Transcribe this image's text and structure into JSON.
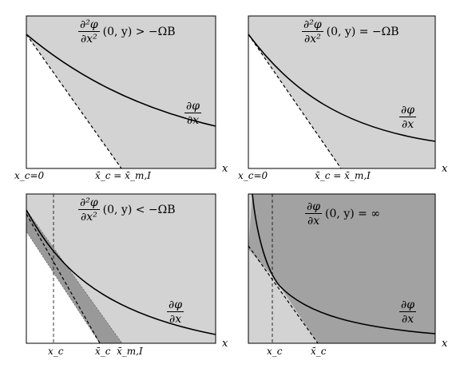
{
  "panels": [
    {
      "id": "top-left",
      "equation": {
        "numerator": "∂²φ",
        "denominator": "∂x²",
        "rest": "(0, y) > −ΩB"
      },
      "curve_label": {
        "numerator": "∂φ",
        "denominator": "∂x"
      },
      "axis_label": "x",
      "x_tick_labels": [
        "x_c=0",
        "x̄_c = x̄_m,I"
      ]
    },
    {
      "id": "top-right",
      "equation": {
        "numerator": "∂²φ",
        "denominator": "∂x²",
        "rest": "(0, y) = −ΩB"
      },
      "curve_label": {
        "numerator": "∂φ",
        "denominator": "∂x"
      },
      "axis_label": "x",
      "x_tick_labels": [
        "x_c=0",
        "x̄_c = x̄_m,I"
      ]
    },
    {
      "id": "bottom-left",
      "equation": {
        "numerator": "∂²φ",
        "denominator": "∂x²",
        "rest": "(0, y) < −ΩB"
      },
      "curve_label": {
        "numerator": "∂φ",
        "denominator": "∂x"
      },
      "axis_label": "x",
      "x_tick_labels": [
        "x_c",
        "x̄_c",
        "x̄_m,I"
      ]
    },
    {
      "id": "bottom-right",
      "equation": {
        "numerator": "∂φ",
        "denominator": "∂x",
        "rest": "(0, y) = ∞"
      },
      "curve_label": {
        "numerator": "∂φ",
        "denominator": "∂x"
      },
      "axis_label": "x",
      "x_tick_labels": [
        "x_c",
        "x̄_c"
      ]
    }
  ],
  "colors": {
    "light_shade": "#d3d3d3",
    "dark_shade": "#a2a2a2",
    "band_shade": "#999999",
    "line": "#000000"
  }
}
